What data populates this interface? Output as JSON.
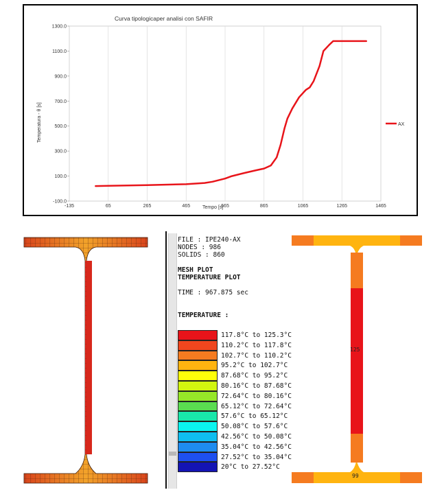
{
  "chart_data": {
    "type": "line",
    "title": "Curva tipologicaper analisi con SAFIR",
    "xlabel": "Tempo [s]",
    "ylabel": "Temperatura - θ [s]",
    "xlim": [
      -135,
      1465
    ],
    "ylim": [
      -100,
      1300
    ],
    "x_ticks": [
      "-135",
      "65",
      "265",
      "465",
      "665",
      "865",
      "1065",
      "1265",
      "1465"
    ],
    "y_ticks": [
      "-100.0",
      "100.0",
      "300.0",
      "500.0",
      "700.0",
      "900.0",
      "1100.0",
      "1300.0"
    ],
    "grid": "vertical",
    "legend_position": "right",
    "series": [
      {
        "name": "AX",
        "color": "#e8141a",
        "x": [
          0,
          65,
          265,
          465,
          560,
          600,
          665,
          700,
          765,
          820,
          865,
          900,
          930,
          950,
          970,
          985,
          1010,
          1045,
          1080,
          1100,
          1120,
          1150,
          1170,
          1200,
          1220,
          1265,
          1300,
          1390
        ],
        "y": [
          20,
          22,
          28,
          35,
          45,
          55,
          80,
          100,
          125,
          145,
          160,
          185,
          250,
          350,
          480,
          560,
          640,
          730,
          790,
          810,
          860,
          980,
          1100,
          1150,
          1180,
          1180,
          1180,
          1180
        ]
      }
    ]
  },
  "simulation": {
    "file": "FILE : IPE240-AX",
    "nodes": "NODES : 986",
    "solids": "SOLIDS : 860",
    "mesh_plot": "MESH PLOT",
    "temperature_plot": "TEMPERATURE PLOT",
    "time": "TIME : 967.875 sec",
    "legend_title": "TEMPERATURE :",
    "legend": [
      {
        "label": "117.8°C to 125.3°C",
        "color": "#e8141a"
      },
      {
        "label": "110.2°C to 117.8°C",
        "color": "#f0461e"
      },
      {
        "label": "102.7°C to 110.2°C",
        "color": "#f57b20"
      },
      {
        "label": "95.2°C to 102.7°C",
        "color": "#ffb410"
      },
      {
        "label": "87.68°C to 95.2°C",
        "color": "#ffff0a"
      },
      {
        "label": "80.16°C to 87.68°C",
        "color": "#d2f50f"
      },
      {
        "label": "72.64°C to 80.16°C",
        "color": "#96e628"
      },
      {
        "label": "65.12°C to 72.64°C",
        "color": "#5adc50"
      },
      {
        "label": "57.6°C to 65.12°C",
        "color": "#19e6aa"
      },
      {
        "label": "50.08°C to 57.6°C",
        "color": "#0af5f0"
      },
      {
        "label": "42.56°C to 50.08°C",
        "color": "#0fbef0"
      },
      {
        "label": "35.04°C to 42.56°C",
        "color": "#1e8cf0"
      },
      {
        "label": "27.52°C to 35.04°C",
        "color": "#1e50f0"
      },
      {
        "label": "20°C to 27.52°C",
        "color": "#1414b4"
      }
    ],
    "web_value_label": "125",
    "flange_value_label": "99"
  }
}
